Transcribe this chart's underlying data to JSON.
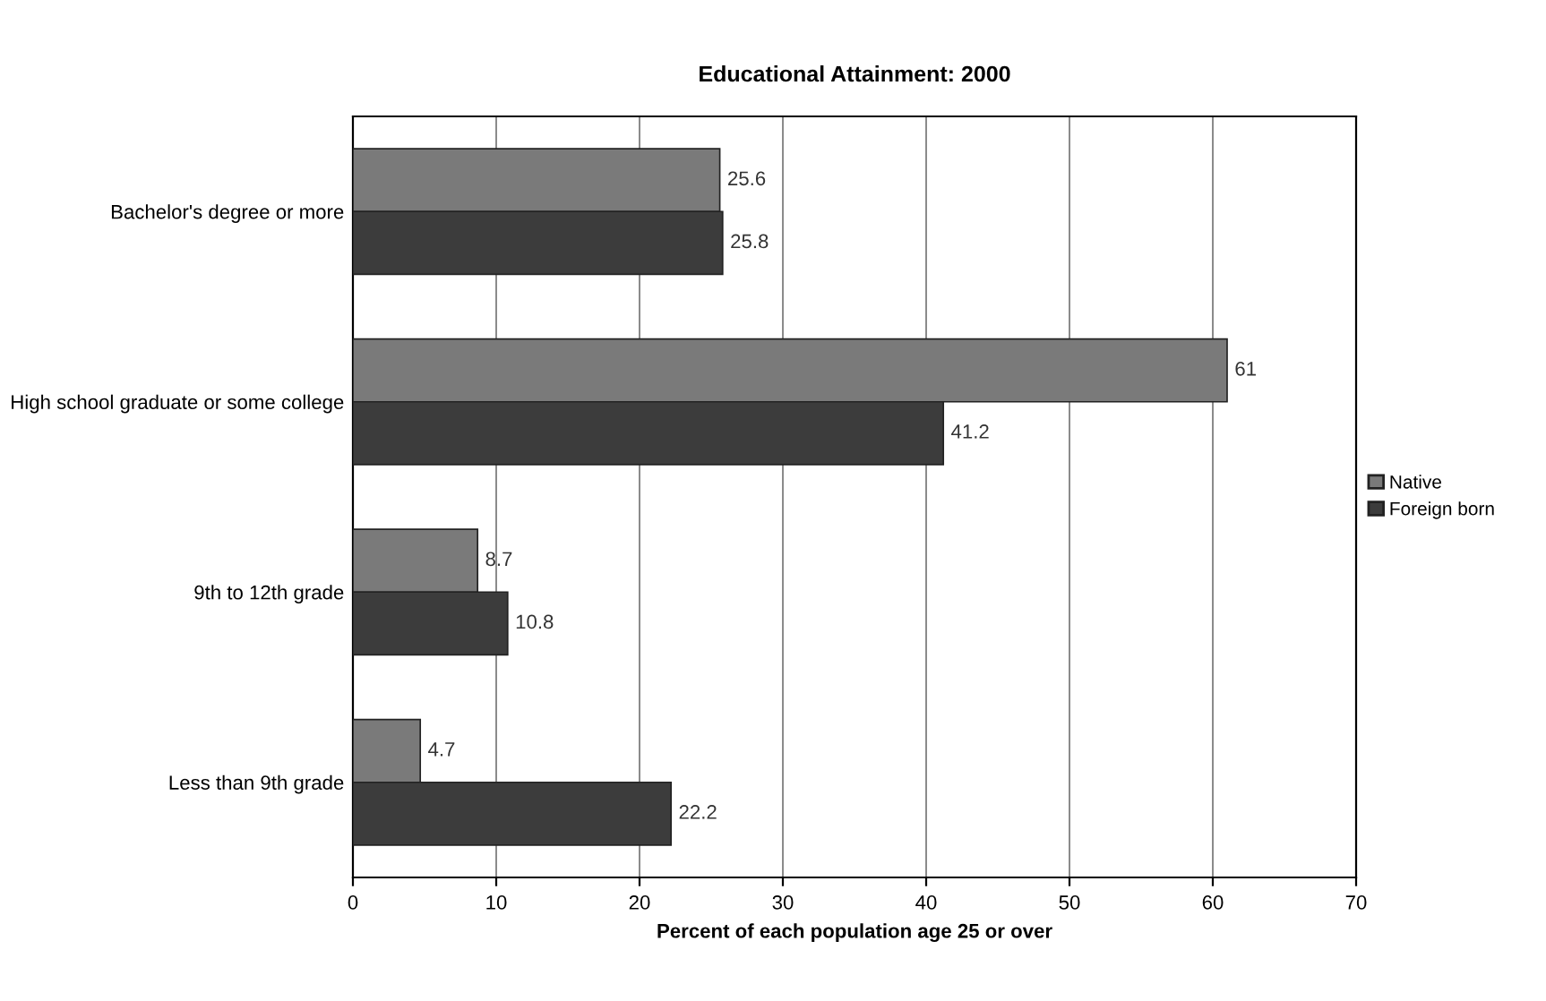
{
  "chart_data": {
    "type": "bar",
    "orientation": "horizontal",
    "title": "Educational Attainment: 2000",
    "xlabel": "Percent of each population age 25 or over",
    "categories": [
      "Bachelor's degree or more",
      "High school graduate or some college",
      "9th to 12th grade",
      "Less than 9th grade"
    ],
    "series": [
      {
        "name": "Native",
        "color": "#7a7a7a",
        "values": [
          25.6,
          61,
          8.7,
          4.7
        ]
      },
      {
        "name": "Foreign born",
        "color": "#3c3c3c",
        "values": [
          25.8,
          41.2,
          10.8,
          22.2
        ]
      }
    ],
    "xlim": [
      0,
      70
    ],
    "xticks": [
      0,
      10,
      20,
      30,
      40,
      50,
      60,
      70
    ],
    "grid": "x",
    "legend": "right",
    "data_labels": true
  }
}
